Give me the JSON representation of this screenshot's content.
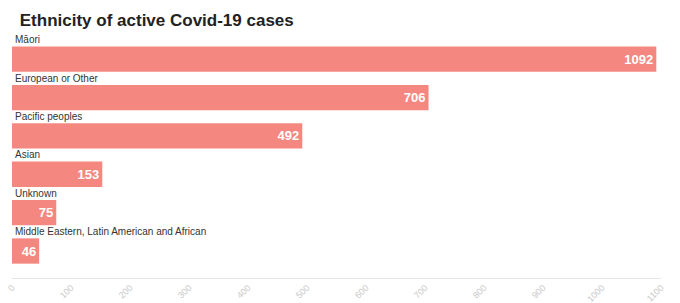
{
  "chart_data": {
    "type": "bar",
    "title": "Ethnicity of active Covid-19 cases",
    "orientation": "horizontal",
    "categories": [
      "Māori",
      "European or Other",
      "Pacific peoples",
      "Asian",
      "Unknown",
      "Middle Eastern, Latin American and African"
    ],
    "values": [
      1092,
      706,
      492,
      153,
      75,
      46
    ],
    "color": "#f4877f",
    "xlim": [
      0,
      1100
    ],
    "xticks": [
      0,
      100,
      200,
      300,
      400,
      500,
      600,
      700,
      800,
      900,
      1000,
      1100
    ],
    "grid": false,
    "data_labels": true,
    "tick_labels": "x"
  }
}
